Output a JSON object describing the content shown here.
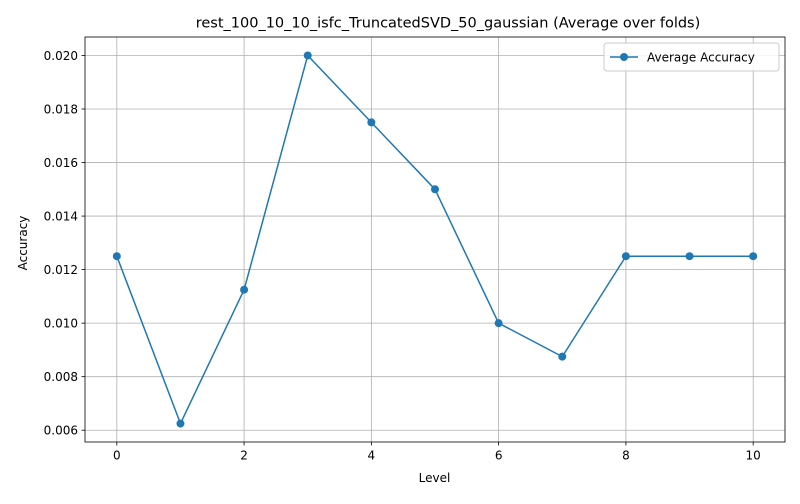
{
  "chart_data": {
    "type": "line",
    "title": "rest_100_10_10_isfc_TruncatedSVD_50_gaussian (Average over folds)",
    "xlabel": "Level",
    "ylabel": "Accuracy",
    "xlim": [
      -0.5,
      10.5
    ],
    "ylim": [
      0.00556,
      0.02069
    ],
    "xticks": [
      0,
      2,
      4,
      6,
      8,
      10
    ],
    "xtick_labels": [
      "0",
      "2",
      "4",
      "6",
      "8",
      "10"
    ],
    "yticks": [
      0.006,
      0.008,
      0.01,
      0.012,
      0.014,
      0.016,
      0.018,
      0.02
    ],
    "ytick_labels": [
      "0.006",
      "0.008",
      "0.010",
      "0.012",
      "0.014",
      "0.016",
      "0.018",
      "0.020"
    ],
    "grid": true,
    "legend_position": "upper-right",
    "series": [
      {
        "name": "Average Accuracy",
        "color": "#1f77b4",
        "marker": "circle",
        "x": [
          0,
          1,
          2,
          3,
          4,
          5,
          6,
          7,
          8,
          9,
          10
        ],
        "y": [
          0.0125,
          0.00625,
          0.01125,
          0.02,
          0.0175,
          0.015,
          0.01,
          0.00875,
          0.0125,
          0.0125,
          0.0125
        ]
      }
    ]
  }
}
